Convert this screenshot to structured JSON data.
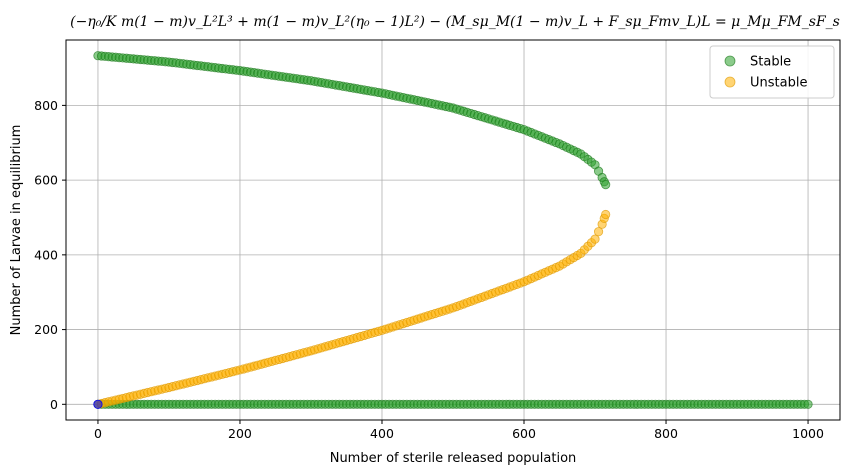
{
  "chart_data": {
    "type": "scatter",
    "title": "(−η₀/K m(1 − m)v_L²L³ + m(1 − m)v_L²(η₀ − 1)L²) − (M_sμ_M(1 − m)v_L + F_sμ_Fmv_L)L = μ_Mμ_FM_sF_s",
    "xlabel": "Number of sterile released population",
    "ylabel": "Number of Larvae in equilibrium",
    "xlim": [
      -45,
      1045
    ],
    "ylim": [
      -42,
      975
    ],
    "xticks": [
      0,
      200,
      400,
      600,
      800,
      1000
    ],
    "yticks": [
      0,
      200,
      400,
      600,
      800
    ],
    "grid": true,
    "legend_position": "top-right",
    "series": [
      {
        "name": "Stable",
        "color": "#2ca02c",
        "edge_color": "#1e7a1e",
        "curve_points": [
          {
            "x": 0,
            "y": 933
          },
          {
            "x": 100,
            "y": 916
          },
          {
            "x": 200,
            "y": 893
          },
          {
            "x": 300,
            "y": 866
          },
          {
            "x": 400,
            "y": 833
          },
          {
            "x": 500,
            "y": 793
          },
          {
            "x": 600,
            "y": 735
          },
          {
            "x": 650,
            "y": 697
          },
          {
            "x": 680,
            "y": 670
          },
          {
            "x": 700,
            "y": 641
          },
          {
            "x": 710,
            "y": 607
          },
          {
            "x": 715,
            "y": 588
          }
        ],
        "baseline_points": {
          "x_start": 0,
          "x_end": 1000,
          "y": 0
        }
      },
      {
        "name": "Unstable",
        "color": "#ffb000",
        "edge_color": "#e09a00",
        "curve_points": [
          {
            "x": 0,
            "y": 0
          },
          {
            "x": 100,
            "y": 45
          },
          {
            "x": 200,
            "y": 92
          },
          {
            "x": 300,
            "y": 143
          },
          {
            "x": 400,
            "y": 198
          },
          {
            "x": 500,
            "y": 258
          },
          {
            "x": 600,
            "y": 328
          },
          {
            "x": 650,
            "y": 370
          },
          {
            "x": 680,
            "y": 404
          },
          {
            "x": 700,
            "y": 442
          },
          {
            "x": 710,
            "y": 482
          },
          {
            "x": 715,
            "y": 508
          }
        ]
      }
    ],
    "extra_marker": {
      "x": 0,
      "y": 0,
      "color": "#0000ff"
    }
  }
}
